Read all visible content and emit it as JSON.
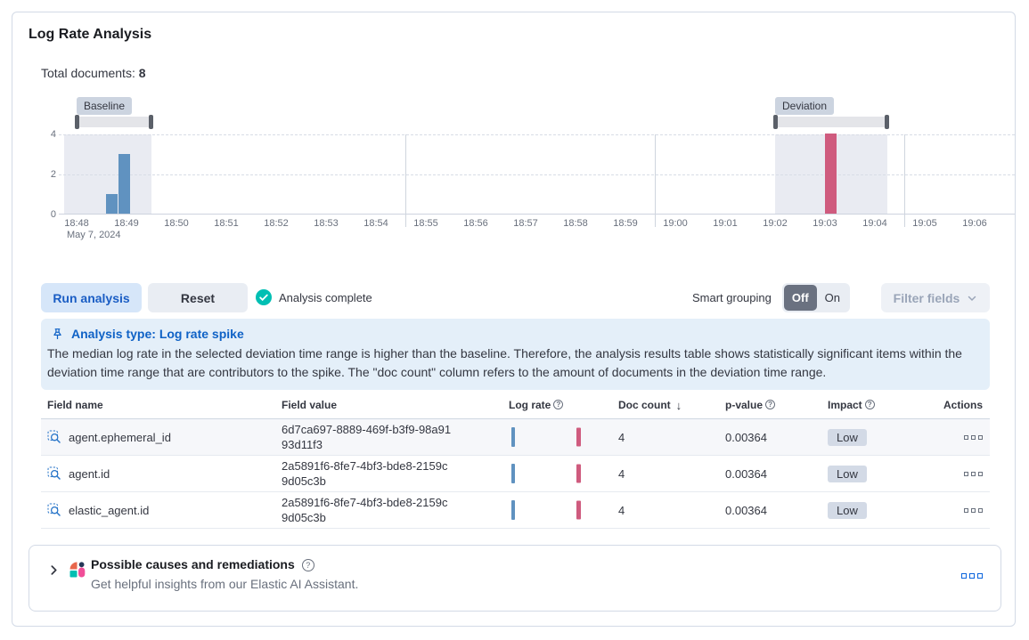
{
  "panel": {
    "title": "Log Rate Analysis"
  },
  "summary": {
    "label": "Total documents:",
    "value": "8"
  },
  "icons": {
    "question": "?",
    "sort_desc": "↓"
  },
  "chart": {
    "chart_data": {
      "type": "bar",
      "title": "",
      "x_axis": {
        "tick_labels": [
          "18:48",
          "18:49",
          "18:50",
          "18:51",
          "18:52",
          "18:53",
          "18:54",
          "18:55",
          "18:56",
          "18:57",
          "18:58",
          "18:59",
          "19:00",
          "19:01",
          "19:02",
          "19:03",
          "19:04",
          "19:05",
          "19:06"
        ],
        "date_label": "May 7, 2024",
        "major_gridlines": [
          "18:54:35",
          "18:59:35",
          "19:04:35"
        ]
      },
      "y_axis": {
        "tick_labels": [
          0,
          2,
          4
        ],
        "range": [
          0,
          4
        ]
      },
      "series": [
        {
          "name": "Baseline doc count",
          "color": "#6092c0",
          "points": [
            {
              "time": "18:48:35",
              "value": 1
            },
            {
              "time": "18:48:50",
              "value": 3
            }
          ]
        },
        {
          "name": "Deviation doc count",
          "color": "#cf5b7e",
          "points": [
            {
              "time": "19:03:00",
              "value": 4
            }
          ]
        }
      ],
      "annotations": {
        "baseline": {
          "label": "Baseline",
          "range": [
            "18:47:45",
            "18:49:30"
          ],
          "brush": [
            "18:48:00",
            "18:49:30"
          ]
        },
        "deviation": {
          "label": "Deviation",
          "range": [
            "19:02:00",
            "19:04:15"
          ],
          "brush": [
            "19:02:00",
            "19:04:15"
          ]
        }
      },
      "legend": "off",
      "grid": "dashed-horizontal"
    }
  },
  "controls": {
    "run_button": "Run analysis",
    "reset_button": "Reset",
    "status": "Analysis complete",
    "smart_grouping_label": "Smart grouping",
    "toggle_off": "Off",
    "toggle_on": "On",
    "filter_fields": "Filter fields"
  },
  "callout": {
    "title": "Analysis type: Log rate spike",
    "body": "The median log rate in the selected deviation time range is higher than the baseline. Therefore, the analysis results table shows statistically significant items within the deviation time range that are contributors to the spike. The \"doc count\" column refers to the amount of documents in the deviation time range."
  },
  "table": {
    "columns": [
      "Field name",
      "Field value",
      "Log rate",
      "Doc count",
      "p-value",
      "Impact",
      "Actions"
    ],
    "sorted_column": "Doc count",
    "sort_direction": "descending",
    "rows": [
      {
        "field_name": "agent.ephemeral_id",
        "field_value": "6d7ca697-8889-469f-b3f9-98a9193d11f3",
        "doc_count": "4",
        "p_value": "0.00364",
        "impact": "Low"
      },
      {
        "field_name": "agent.id",
        "field_value": "2a5891f6-8fe7-4bf3-bde8-2159c9d05c3b",
        "doc_count": "4",
        "p_value": "0.00364",
        "impact": "Low"
      },
      {
        "field_name": "elastic_agent.id",
        "field_value": "2a5891f6-8fe7-4bf3-bde8-2159c9d05c3b",
        "doc_count": "4",
        "p_value": "0.00364",
        "impact": "Low"
      }
    ]
  },
  "ai_panel": {
    "title": "Possible causes and remediations",
    "subtitle": "Get helpful insights from our Elastic AI Assistant."
  },
  "colors": {
    "primary": "#0b64dd",
    "primary_button_bg": "#d6e6f9",
    "primary_button_text": "#1a5dc4",
    "bar_baseline": "#6092c0",
    "bar_deviation": "#cf5b7e",
    "time_range_fill": "#e9ebf2",
    "callout_bg": "#e4eff9",
    "callout_title": "#0f62c6",
    "success": "#00bfb3",
    "badge_bg": "#ccd4e0",
    "impact_badge_bg": "#d3dae6",
    "border": "#d3dae6",
    "text": "#343741",
    "text_subdued": "#69707d",
    "toggle_off_bg": "#6a7180",
    "toggle_bg": "#e9edf3",
    "disabled_text": "#9aa5b8",
    "disabled_bg": "#eef1f6"
  }
}
